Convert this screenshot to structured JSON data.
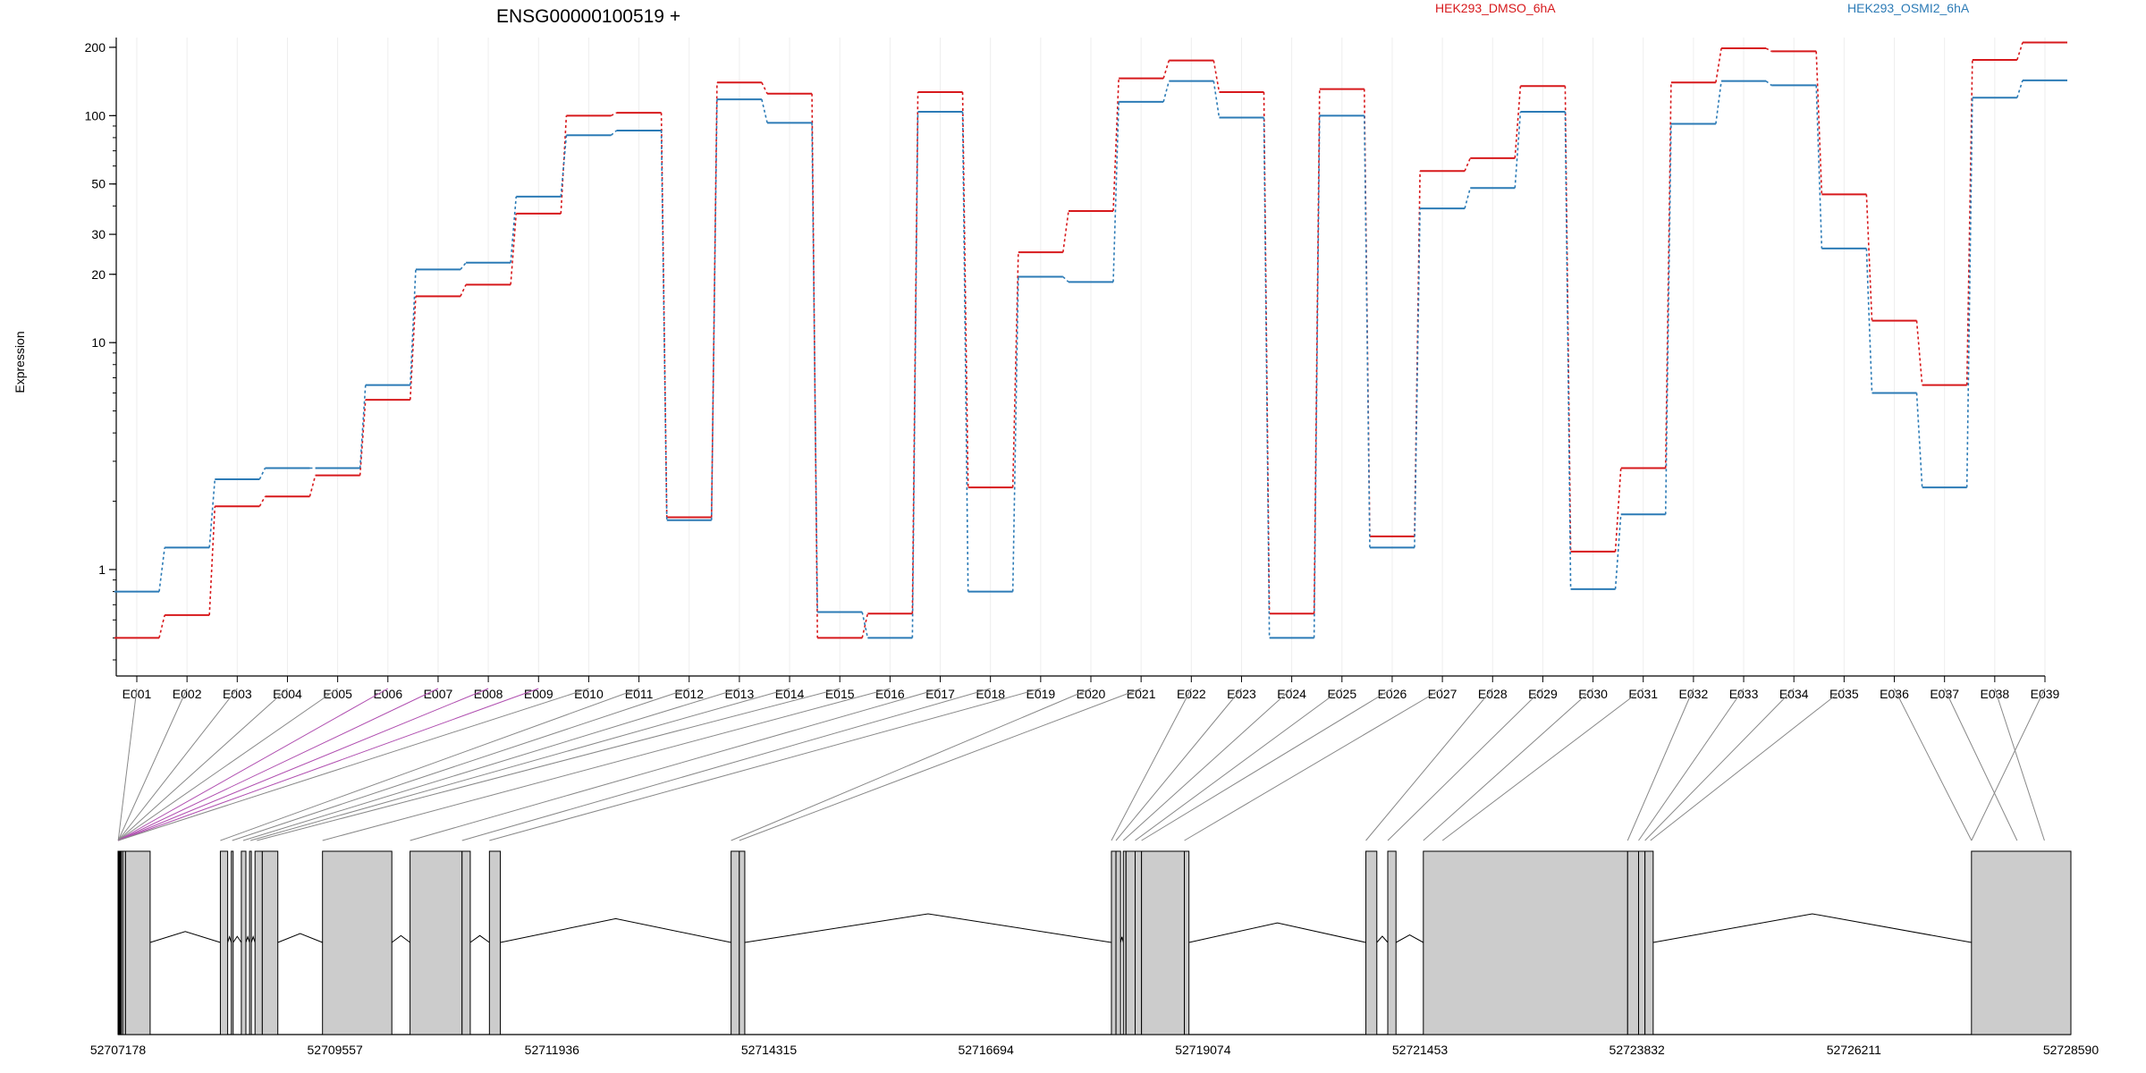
{
  "chart_data": {
    "type": "line",
    "title": "ENSG00000100519 +",
    "ylabel": "Expression",
    "xlabel": "",
    "y_scale": "log",
    "ylim": [
      0.4,
      260
    ],
    "yticks": [
      1,
      10,
      20,
      30,
      50,
      100,
      200
    ],
    "grid": true,
    "legend_placement": "top",
    "categories": [
      "E001",
      "E002",
      "E003",
      "E004",
      "E005",
      "E006",
      "E007",
      "E008",
      "E009",
      "E010",
      "E011",
      "E012",
      "E013",
      "E014",
      "E015",
      "E016",
      "E017",
      "E018",
      "E019",
      "E020",
      "E021",
      "E022",
      "E023",
      "E024",
      "E025",
      "E026",
      "E027",
      "E028",
      "E029",
      "E030",
      "E031",
      "E032",
      "E033",
      "E034",
      "E035",
      "E036",
      "E037",
      "E038",
      "E039"
    ],
    "series": [
      {
        "name": "HEK293_DMSO_6hA",
        "color": "#d7191c",
        "values": [
          0.5,
          0.63,
          1.9,
          2.1,
          2.6,
          5.6,
          16,
          18,
          37,
          100,
          103,
          1.7,
          140,
          125,
          0.5,
          0.64,
          127,
          2.3,
          25,
          38,
          146,
          175,
          127,
          0.64,
          131,
          1.4,
          57,
          65,
          135,
          1.2,
          2.8,
          140,
          198,
          192,
          45,
          12.5,
          6.5,
          176,
          210
        ]
      },
      {
        "name": "HEK293_OSMI2_6hA",
        "color": "#2c7bb6",
        "values": [
          0.8,
          1.25,
          2.5,
          2.8,
          2.8,
          6.5,
          21,
          22.5,
          44,
          82,
          86,
          1.65,
          118,
          93,
          0.65,
          0.5,
          104,
          0.8,
          19.5,
          18.5,
          115,
          142,
          98,
          0.5,
          100,
          1.25,
          39,
          48,
          104,
          0.82,
          1.75,
          92,
          142,
          136,
          26,
          6,
          2.3,
          120,
          143
        ]
      }
    ],
    "gene_model": {
      "coordinates": [
        "52707178",
        "52709557",
        "52711936",
        "52714315",
        "52716694",
        "52719074",
        "52721453",
        "52723832",
        "52726211",
        "52728590"
      ],
      "range": [
        52707178,
        52728590
      ],
      "exons": [
        [
          52707178,
          52707230
        ],
        [
          52707230,
          52707260
        ],
        [
          52707260,
          52707530
        ],
        [
          52708300,
          52708380
        ],
        [
          52708420,
          52708440
        ],
        [
          52708530,
          52708580
        ],
        [
          52708620,
          52708640
        ],
        [
          52708680,
          52708760
        ],
        [
          52708760,
          52708930
        ],
        [
          52709420,
          52710180
        ],
        [
          52710380,
          52710950
        ],
        [
          52710950,
          52711040
        ],
        [
          52711250,
          52711370
        ],
        [
          52713900,
          52713990
        ],
        [
          52713990,
          52714050
        ],
        [
          52718070,
          52718120
        ],
        [
          52718120,
          52718170
        ],
        [
          52718200,
          52718230
        ],
        [
          52718230,
          52718330
        ],
        [
          52718330,
          52718400
        ],
        [
          52718400,
          52718870
        ],
        [
          52718870,
          52718920
        ],
        [
          52720860,
          52720980
        ],
        [
          52721100,
          52721190
        ],
        [
          52721490,
          52723730
        ],
        [
          52723730,
          52723850
        ],
        [
          52723850,
          52723920
        ],
        [
          52723920,
          52724010
        ],
        [
          52727500,
          52728590
        ]
      ],
      "intron_color": "#000000",
      "exon_fill": "#cccccc",
      "highlight_link_color": "#b04fb0"
    }
  }
}
